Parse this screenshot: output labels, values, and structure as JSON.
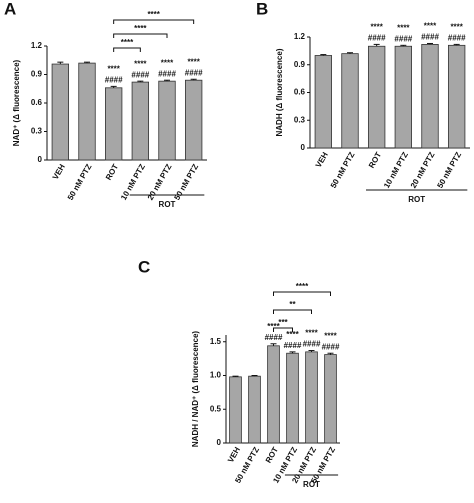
{
  "chart_data": [
    {
      "type": "bar",
      "panel_label": "A",
      "ylabel": "NAD⁺ (Δ fluorescence)",
      "color": "#a6a6a6",
      "categories": [
        "VEH",
        "50 nM PTZ",
        "ROT",
        "10 nM PTZ",
        "20 nM PTZ",
        "50 nM PTZ"
      ],
      "values": [
        1.01,
        1.02,
        0.76,
        0.82,
        0.83,
        0.84
      ],
      "errors": [
        0.02,
        0.01,
        0.015,
        0.01,
        0.01,
        0.01
      ],
      "stars": [
        null,
        null,
        "****",
        "****",
        "****",
        "****"
      ],
      "hashes": [
        null,
        null,
        "####",
        "####",
        "####",
        "####"
      ],
      "brackets": [
        {
          "from": 2,
          "to": 3,
          "label": "****"
        },
        {
          "from": 2,
          "to": 4,
          "label": "****"
        },
        {
          "from": 2,
          "to": 5,
          "label": "****"
        }
      ],
      "group": {
        "label": "ROT",
        "from": 3,
        "to": 5
      },
      "ylim": [
        0,
        1.2
      ],
      "yticks": [
        0,
        0.3,
        0.6,
        0.9,
        1.2
      ]
    },
    {
      "type": "bar",
      "panel_label": "B",
      "ylabel": "NADH (Δ fluorescence)",
      "color": "#a6a6a6",
      "categories": [
        "VEH",
        "50 nM PTZ",
        "ROT",
        "10 nM PTZ",
        "20 nM PTZ",
        "50 nM PTZ"
      ],
      "values": [
        1.0,
        1.02,
        1.1,
        1.1,
        1.12,
        1.11
      ],
      "errors": [
        0.01,
        0.01,
        0.02,
        0.01,
        0.01,
        0.01
      ],
      "stars": [
        null,
        null,
        "****",
        "****",
        "****",
        "****"
      ],
      "hashes": [
        null,
        null,
        "####",
        "####",
        "####",
        "####"
      ],
      "brackets": [],
      "group": {
        "label": "ROT",
        "from": 2,
        "to": 5
      },
      "ylim": [
        0,
        1.2
      ],
      "yticks": [
        0,
        0.3,
        0.6,
        0.9,
        1.2
      ]
    },
    {
      "type": "bar",
      "panel_label": "C",
      "ylabel": "NADH / NAD⁺ (Δ fluorescence)",
      "color": "#a6a6a6",
      "categories": [
        "VEH",
        "50 nM PTZ",
        "ROT",
        "10 nM PTZ",
        "20 nM PTZ",
        "50 nM PTZ"
      ],
      "values": [
        0.98,
        0.99,
        1.44,
        1.33,
        1.35,
        1.31
      ],
      "errors": [
        0.01,
        0.01,
        0.03,
        0.02,
        0.02,
        0.02
      ],
      "stars": [
        null,
        null,
        "****",
        "****",
        "****",
        "****"
      ],
      "hashes": [
        null,
        null,
        "####",
        "####",
        "####",
        "####"
      ],
      "brackets": [
        {
          "from": 2,
          "to": 3,
          "label": "***"
        },
        {
          "from": 2,
          "to": 4,
          "label": "**"
        },
        {
          "from": 2,
          "to": 5,
          "label": "****"
        }
      ],
      "group": {
        "label": "ROT",
        "from": 3,
        "to": 5
      },
      "ylim": [
        0,
        1.6
      ],
      "yticks": [
        0,
        {
          "value": 0.5,
          "label": "0.5"
        },
        {
          "value": 1,
          "label": "1.0"
        },
        {
          "value": 1.5,
          "label": "1.5"
        }
      ]
    }
  ]
}
